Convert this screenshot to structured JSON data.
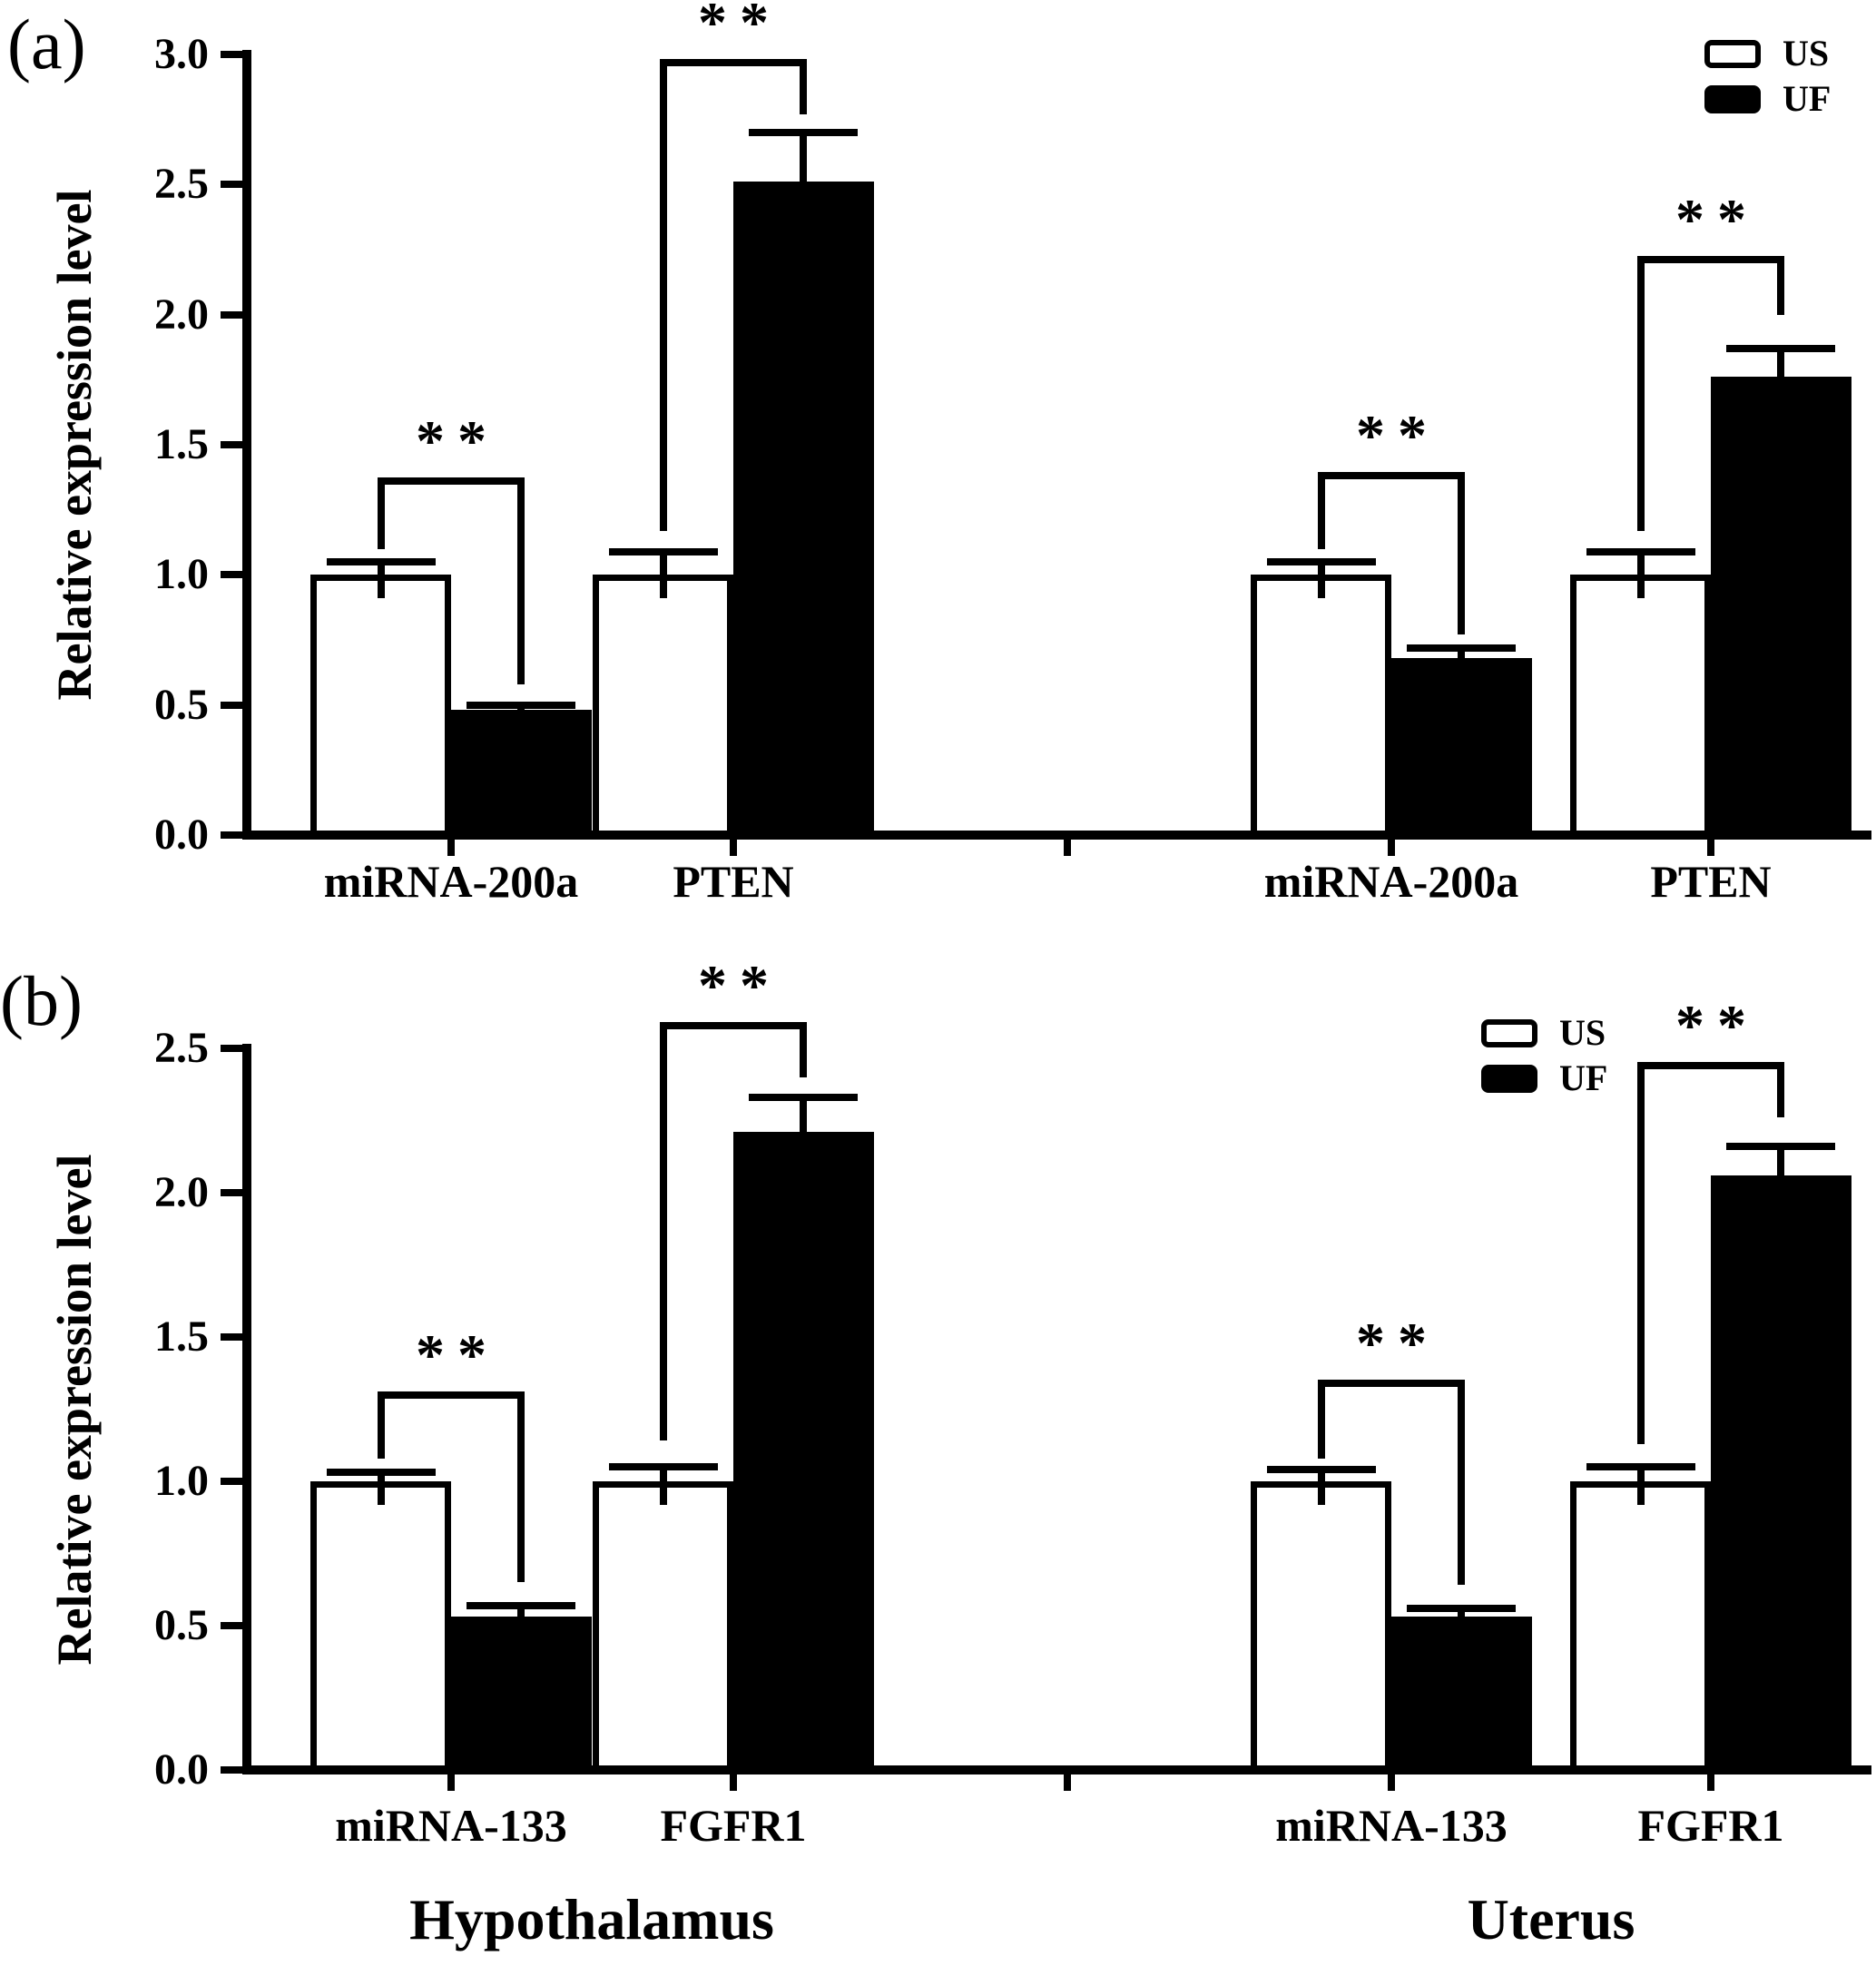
{
  "figure": {
    "background": "#ffffff",
    "ink_color": "#000000",
    "panel_letters": [
      "(a)",
      "(b)"
    ],
    "tissue_labels": [
      "Hypothalamus",
      "Uterus"
    ]
  },
  "chart_data": [
    {
      "panel": "a",
      "type": "bar",
      "title": "",
      "xlabel": "",
      "ylabel": "Relative expression level",
      "ylim": [
        0,
        3.0
      ],
      "ytick_step": 0.5,
      "yticks": [
        "0.0",
        "0.5",
        "1.0",
        "1.5",
        "2.0",
        "2.5",
        "3.0"
      ],
      "grid": false,
      "legend": {
        "position": "top-right",
        "entries": [
          {
            "label": "US",
            "fill": "#ffffff"
          },
          {
            "label": "UF",
            "fill": "#000000"
          }
        ]
      },
      "categories": [
        "miRNA-200a",
        "PTEN",
        "miRNA-200a",
        "PTEN"
      ],
      "group_tissues": [
        "Hypothalamus",
        "Hypothalamus",
        "Uterus",
        "Uterus"
      ],
      "series": [
        {
          "name": "US",
          "values": [
            1.0,
            1.0,
            1.0,
            1.0
          ],
          "errors": [
            0.05,
            0.09,
            0.05,
            0.09
          ]
        },
        {
          "name": "UF",
          "values": [
            0.48,
            2.51,
            0.68,
            1.76
          ],
          "errors": [
            0.02,
            0.19,
            0.04,
            0.11
          ]
        }
      ],
      "significance": [
        {
          "group_index": 0,
          "label": "**",
          "bracket_top": 1.36,
          "left_drop": 1.1,
          "right_drop": 0.58
        },
        {
          "group_index": 1,
          "label": "**",
          "bracket_top": 2.97,
          "left_drop": 1.17,
          "right_drop": 2.77
        },
        {
          "group_index": 2,
          "label": "**",
          "bracket_top": 1.38,
          "left_drop": 1.1,
          "right_drop": 0.77
        },
        {
          "group_index": 3,
          "label": "**",
          "bracket_top": 2.21,
          "left_drop": 1.17,
          "right_drop": 2.0
        }
      ]
    },
    {
      "panel": "b",
      "type": "bar",
      "title": "",
      "xlabel": "",
      "ylabel": "Relative expression level",
      "ylim": [
        0,
        2.5
      ],
      "ytick_step": 0.5,
      "yticks": [
        "0.0",
        "0.5",
        "1.0",
        "1.5",
        "2.0",
        "2.5"
      ],
      "grid": false,
      "legend": {
        "position": "top-right-inner",
        "entries": [
          {
            "label": "US",
            "fill": "#ffffff"
          },
          {
            "label": "UF",
            "fill": "#000000"
          }
        ]
      },
      "categories": [
        "miRNA-133",
        "FGFR1",
        "miRNA-133",
        "FGFR1"
      ],
      "group_tissues": [
        "Hypothalamus",
        "Hypothalamus",
        "Uterus",
        "Uterus"
      ],
      "series": [
        {
          "name": "US",
          "values": [
            1.0,
            1.0,
            1.0,
            1.0
          ],
          "errors": [
            0.03,
            0.05,
            0.04,
            0.05
          ]
        },
        {
          "name": "UF",
          "values": [
            0.53,
            2.21,
            0.53,
            2.06
          ],
          "errors": [
            0.04,
            0.12,
            0.03,
            0.1
          ]
        }
      ],
      "significance": [
        {
          "group_index": 0,
          "label": "**",
          "bracket_top": 1.3,
          "left_drop": 1.08,
          "right_drop": 0.65
        },
        {
          "group_index": 1,
          "label": "**",
          "bracket_top": 2.58,
          "left_drop": 1.14,
          "right_drop": 2.4
        },
        {
          "group_index": 2,
          "label": "**",
          "bracket_top": 1.34,
          "left_drop": 1.08,
          "right_drop": 0.64
        },
        {
          "group_index": 3,
          "label": "**",
          "bracket_top": 2.44,
          "left_drop": 1.13,
          "right_drop": 2.26
        }
      ]
    }
  ]
}
